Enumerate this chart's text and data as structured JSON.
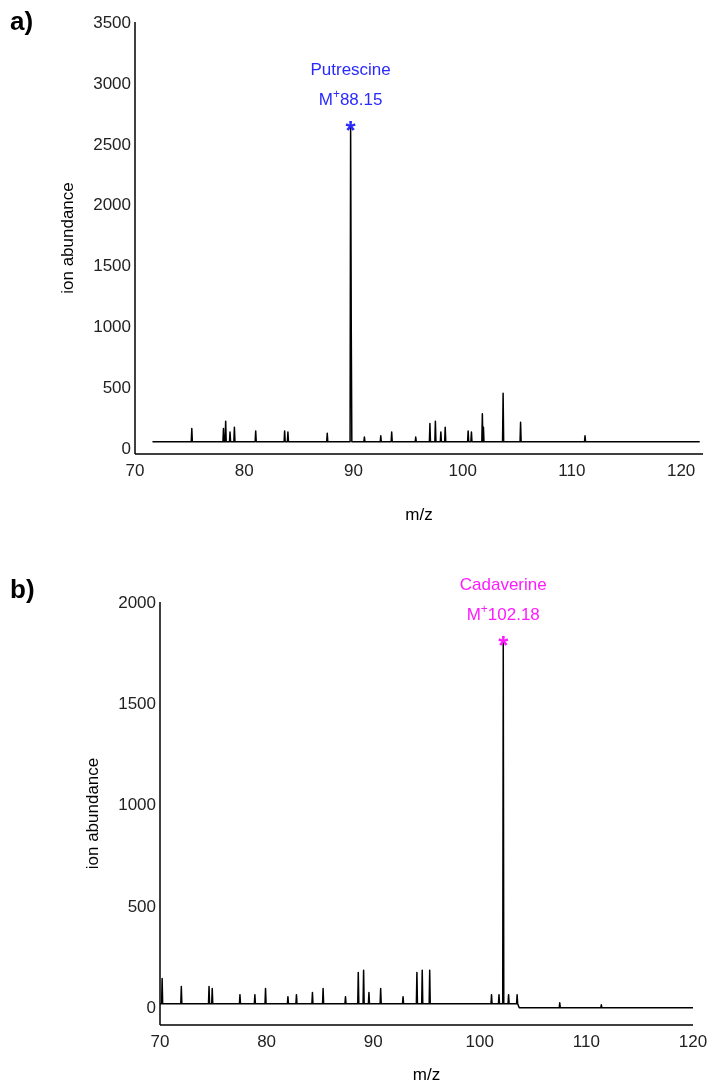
{
  "chart_data": [
    {
      "type": "line",
      "title": "a)",
      "xlabel": "m/z",
      "ylabel": "ion abundance",
      "xlim": [
        70,
        122
      ],
      "ylim": [
        -50,
        3500
      ],
      "xticks": [
        70,
        80,
        90,
        100,
        110,
        120
      ],
      "yticks": [
        0,
        500,
        1000,
        1500,
        2000,
        2500,
        3000,
        3500
      ],
      "grid": false,
      "marker": "none",
      "annotations": [
        "Putrescine",
        "M$^{+}$88.15",
        {
          "text": "*",
          "x": 89.74,
          "y": 2640
        }
      ],
      "series": [
        {
          "color": "#000000",
          "x": [
            71.6,
            75.15,
            75.2,
            75.25,
            78.05,
            78.1,
            78.15,
            78.25,
            78.3,
            78.35,
            78.65,
            78.7,
            78.75,
            79.05,
            79.1,
            79.15,
            81.0,
            81.05,
            81.1,
            83.65,
            83.7,
            83.75,
            83.95,
            84.0,
            84.05,
            87.55,
            87.6,
            87.65,
            89.69,
            89.74,
            89.8,
            89.85,
            90.95,
            91.0,
            91.05,
            92.45,
            92.5,
            92.55,
            93.45,
            93.5,
            93.55,
            95.65,
            95.7,
            95.75,
            96.95,
            97.0,
            97.05,
            97.45,
            97.5,
            97.55,
            97.95,
            98.0,
            98.05,
            98.35,
            98.4,
            98.45,
            100.45,
            100.5,
            100.55,
            100.75,
            100.8,
            100.85,
            101.75,
            101.8,
            101.85,
            101.9,
            101.95,
            103.65,
            103.7,
            103.75,
            105.25,
            105.3,
            105.35,
            111.15,
            111.2,
            111.25,
            121.7
          ],
          "values": [
            50,
            50,
            160,
            50,
            50,
            160,
            50,
            50,
            220,
            50,
            50,
            130,
            50,
            50,
            170,
            50,
            50,
            140,
            50,
            50,
            140,
            50,
            50,
            130,
            50,
            50,
            120,
            50,
            50,
            2640,
            950,
            50,
            50,
            90,
            50,
            50,
            100,
            50,
            50,
            130,
            50,
            50,
            90,
            50,
            50,
            200,
            50,
            50,
            220,
            50,
            50,
            130,
            50,
            50,
            170,
            50,
            50,
            140,
            50,
            50,
            130,
            50,
            50,
            280,
            50,
            170,
            50,
            50,
            450,
            50,
            50,
            210,
            50,
            50,
            100,
            50,
            50
          ]
        }
      ]
    },
    {
      "type": "line",
      "title": "b)",
      "xlabel": "m/z",
      "ylabel": "ion abundance",
      "xlim": [
        70,
        120
      ],
      "ylim": [
        -90,
        2000
      ],
      "xticks": [
        70,
        80,
        90,
        100,
        110,
        120
      ],
      "yticks": [
        0,
        500,
        1000,
        1500,
        2000
      ],
      "grid": false,
      "marker": "none",
      "annotations": [
        "Cadaverine",
        "M$^{+}$102.18",
        {
          "text": "*",
          "x": 102.2,
          "y": 1800
        }
      ],
      "series": [
        {
          "color": "#000000",
          "x": [
            70.0,
            70.15,
            70.2,
            70.25,
            71.95,
            72.0,
            72.05,
            74.55,
            74.6,
            74.65,
            74.85,
            74.9,
            74.95,
            77.45,
            77.5,
            77.55,
            78.85,
            78.9,
            78.95,
            79.85,
            79.9,
            79.95,
            81.95,
            82.0,
            82.05,
            82.75,
            82.8,
            82.85,
            84.25,
            84.3,
            84.35,
            85.25,
            85.3,
            85.35,
            87.35,
            87.4,
            87.45,
            88.55,
            88.6,
            88.65,
            89.05,
            89.1,
            89.15,
            89.55,
            89.6,
            89.65,
            90.65,
            90.7,
            90.75,
            92.75,
            92.8,
            92.85,
            94.05,
            94.1,
            94.15,
            94.55,
            94.6,
            94.65,
            95.25,
            95.3,
            95.35,
            101.05,
            101.1,
            101.15,
            101.75,
            101.8,
            101.85,
            102.15,
            102.2,
            102.25,
            102.65,
            102.7,
            102.75,
            103.45,
            103.5,
            103.55,
            103.7,
            107.45,
            107.5,
            107.55,
            111.35,
            111.4,
            111.45,
            120
          ],
          "values": [
            15,
            15,
            140,
            15,
            15,
            100,
            15,
            15,
            100,
            15,
            15,
            90,
            15,
            15,
            60,
            15,
            15,
            60,
            15,
            15,
            90,
            15,
            15,
            50,
            15,
            15,
            60,
            15,
            15,
            70,
            15,
            15,
            90,
            15,
            15,
            50,
            15,
            15,
            170,
            15,
            15,
            180,
            15,
            15,
            70,
            15,
            15,
            90,
            15,
            15,
            50,
            15,
            15,
            170,
            15,
            15,
            180,
            15,
            15,
            180,
            15,
            15,
            60,
            15,
            15,
            60,
            15,
            15,
            1800,
            15,
            15,
            60,
            15,
            15,
            60,
            15,
            -5,
            -5,
            20,
            -5,
            -5,
            10,
            -5,
            -5
          ]
        }
      ]
    }
  ]
}
